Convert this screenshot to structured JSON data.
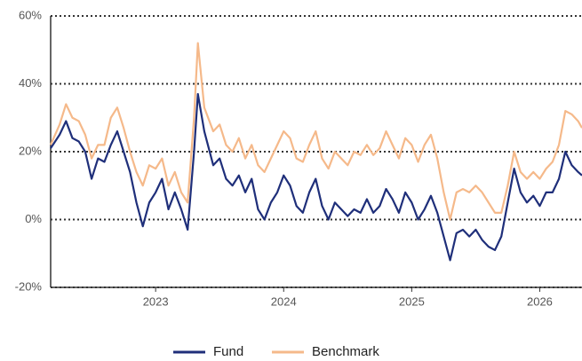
{
  "chart_data": {
    "type": "line",
    "x": [
      2022.18,
      2022.25,
      2022.3,
      2022.35,
      2022.4,
      2022.45,
      2022.5,
      2022.55,
      2022.6,
      2022.65,
      2022.7,
      2022.75,
      2022.8,
      2022.85,
      2022.9,
      2022.95,
      2023.0,
      2023.05,
      2023.1,
      2023.15,
      2023.2,
      2023.25,
      2023.3,
      2023.33,
      2023.38,
      2023.45,
      2023.5,
      2023.55,
      2023.6,
      2023.65,
      2023.7,
      2023.75,
      2023.8,
      2023.85,
      2023.9,
      2023.95,
      2024.0,
      2024.05,
      2024.1,
      2024.15,
      2024.2,
      2024.25,
      2024.3,
      2024.35,
      2024.4,
      2024.45,
      2024.5,
      2024.55,
      2024.6,
      2024.65,
      2024.7,
      2024.75,
      2024.8,
      2024.85,
      2024.9,
      2024.95,
      2025.0,
      2025.05,
      2025.1,
      2025.15,
      2025.2,
      2025.25,
      2025.3,
      2025.35,
      2025.4,
      2025.45,
      2025.5,
      2025.55,
      2025.6,
      2025.65,
      2025.7,
      2025.75,
      2025.8,
      2025.85,
      2025.9,
      2025.95,
      2026.0,
      2026.05,
      2026.1,
      2026.15,
      2026.2,
      2026.25,
      2026.3,
      2026.33
    ],
    "series": [
      {
        "name": "Fund",
        "color": "#1f2f7a",
        "values": [
          21,
          25,
          29,
          24,
          23,
          20,
          12,
          18,
          17,
          22,
          26,
          20,
          14,
          5,
          -2,
          5,
          8,
          12,
          3,
          8,
          3,
          -3,
          20,
          37,
          26,
          16,
          18,
          12,
          10,
          13,
          8,
          12,
          3,
          0,
          5,
          8,
          13,
          10,
          4,
          2,
          8,
          12,
          4,
          0,
          5,
          3,
          1,
          3,
          2,
          6,
          2,
          4,
          9,
          6,
          2,
          8,
          5,
          0,
          3,
          7,
          2,
          -5,
          -12,
          -4,
          -3,
          -5,
          -3,
          -6,
          -8,
          -9,
          -5,
          5,
          15,
          8,
          5,
          7,
          4,
          8,
          8,
          12,
          20,
          16,
          14,
          13
        ]
      },
      {
        "name": "Benchmark",
        "color": "#f5b98a",
        "values": [
          22,
          28,
          34,
          30,
          29,
          25,
          18,
          22,
          22,
          30,
          33,
          27,
          20,
          14,
          10,
          16,
          15,
          18,
          10,
          14,
          8,
          5,
          30,
          52,
          33,
          26,
          28,
          22,
          20,
          24,
          18,
          22,
          16,
          14,
          18,
          22,
          26,
          24,
          18,
          17,
          22,
          26,
          18,
          15,
          20,
          18,
          16,
          20,
          19,
          22,
          19,
          21,
          26,
          22,
          18,
          24,
          22,
          17,
          22,
          25,
          18,
          8,
          0,
          8,
          9,
          8,
          10,
          8,
          5,
          2,
          2,
          10,
          20,
          14,
          12,
          14,
          12,
          15,
          17,
          22,
          32,
          31,
          29,
          27
        ]
      }
    ],
    "xlim": [
      2022.18,
      2026.33
    ],
    "xticks": [
      2023,
      2024,
      2025,
      2026
    ],
    "ylim": [
      -20,
      60
    ],
    "yticks": [
      {
        "value": -20,
        "label": "-20%"
      },
      {
        "value": 0,
        "label": "0%"
      },
      {
        "value": 20,
        "label": "20%"
      },
      {
        "value": 40,
        "label": "40%"
      },
      {
        "value": 60,
        "label": "60%"
      }
    ],
    "grid": true
  }
}
